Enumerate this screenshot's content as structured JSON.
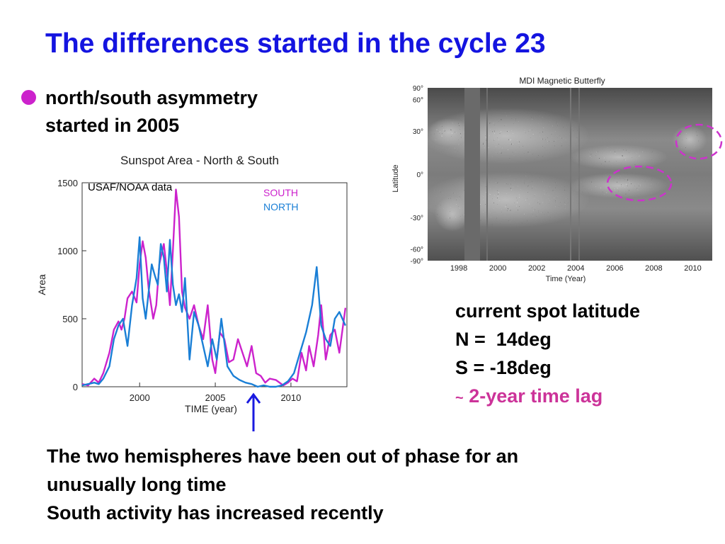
{
  "title": "The differences started in the cycle 23",
  "bullet": {
    "line1": "north/south asymmetry",
    "line2": "started in 2005"
  },
  "right_note": {
    "line1": "current spot latitude",
    "line2": "N =  14deg",
    "line3": "S = -18deg",
    "line4_symbol": "~",
    "line4_text": "2-year time lag"
  },
  "bottom_note": {
    "line1": "The two hemispheres have been out of phase for an",
    "line2": "unusually long time",
    "line3": "South activity has increased recently"
  },
  "colors": {
    "title": "#1414e0",
    "south": "#cc22cc",
    "north": "#1a7fd6",
    "lag": "#cc3399",
    "arrow": "#1a1ae0"
  },
  "chart_data": [
    {
      "type": "line",
      "title": "Sunspot Area - North & South",
      "xlabel": "TIME (year)",
      "ylabel": "Area",
      "annotation": "USAF/NOAA data",
      "xlim": [
        1996.2,
        2013.7
      ],
      "ylim": [
        0,
        1500
      ],
      "xticks": [
        2000,
        2005,
        2010
      ],
      "yticks": [
        0,
        500,
        1000,
        1500
      ],
      "series": [
        {
          "name": "SOUTH",
          "x": [
            1996.2,
            1996.6,
            1997.0,
            1997.3,
            1997.6,
            1998.0,
            1998.3,
            1998.6,
            1998.8,
            1999.0,
            1999.2,
            1999.5,
            1999.8,
            2000.0,
            2000.2,
            2000.4,
            2000.6,
            2000.9,
            2001.1,
            2001.3,
            2001.6,
            2001.8,
            2002.0,
            2002.2,
            2002.4,
            2002.6,
            2002.8,
            2003.0,
            2003.3,
            2003.6,
            2003.9,
            2004.2,
            2004.5,
            2004.8,
            2005.0,
            2005.3,
            2005.6,
            2005.9,
            2006.2,
            2006.5,
            2006.8,
            2007.1,
            2007.4,
            2007.7,
            2008.0,
            2008.3,
            2008.6,
            2009.0,
            2009.5,
            2009.8,
            2010.1,
            2010.4,
            2010.7,
            2011.0,
            2011.2,
            2011.5,
            2011.8,
            2012.0,
            2012.3,
            2012.6,
            2012.9,
            2013.2,
            2013.6
          ],
          "values": [
            20,
            10,
            60,
            30,
            100,
            250,
            420,
            480,
            420,
            500,
            650,
            700,
            620,
            900,
            1070,
            950,
            720,
            500,
            600,
            900,
            1050,
            850,
            600,
            1000,
            1450,
            1250,
            700,
            580,
            500,
            600,
            450,
            350,
            600,
            200,
            100,
            400,
            350,
            180,
            200,
            350,
            250,
            150,
            300,
            100,
            80,
            30,
            60,
            50,
            10,
            30,
            60,
            40,
            250,
            120,
            300,
            150,
            380,
            600,
            200,
            380,
            420,
            250,
            580
          ]
        },
        {
          "name": "NORTH",
          "x": [
            1996.2,
            1996.6,
            1997.0,
            1997.3,
            1997.6,
            1998.0,
            1998.3,
            1998.6,
            1998.9,
            1999.2,
            1999.5,
            1999.8,
            2000.0,
            2000.2,
            2000.4,
            2000.6,
            2000.8,
            2001.0,
            2001.2,
            2001.4,
            2001.6,
            2001.8,
            2002.0,
            2002.2,
            2002.4,
            2002.6,
            2002.8,
            2003.0,
            2003.3,
            2003.6,
            2003.9,
            2004.2,
            2004.5,
            2004.8,
            2005.1,
            2005.4,
            2005.8,
            2006.2,
            2006.6,
            2007.0,
            2007.4,
            2007.8,
            2008.2,
            2008.6,
            2009.0,
            2009.4,
            2009.8,
            2010.2,
            2010.6,
            2011.0,
            2011.4,
            2011.7,
            2012.0,
            2012.3,
            2012.6,
            2012.9,
            2013.2,
            2013.6
          ],
          "values": [
            10,
            20,
            30,
            20,
            60,
            150,
            350,
            450,
            500,
            300,
            600,
            800,
            1100,
            650,
            500,
            700,
            900,
            820,
            750,
            1050,
            950,
            700,
            1080,
            750,
            600,
            680,
            550,
            800,
            200,
            550,
            450,
            300,
            150,
            350,
            200,
            500,
            150,
            80,
            50,
            30,
            20,
            0,
            10,
            0,
            0,
            10,
            40,
            100,
            250,
            400,
            600,
            880,
            450,
            350,
            300,
            500,
            550,
            450
          ]
        }
      ]
    },
    {
      "type": "heatmap",
      "title": "MDI Magnetic Butterfly",
      "xlabel": "Time (Year)",
      "ylabel": "Latitude",
      "xticks": [
        1998,
        2000,
        2002,
        2004,
        2006,
        2008,
        2010
      ],
      "ytick_labels": [
        "90°",
        "60°",
        "30°",
        "0°",
        "-30°",
        "-60°",
        "-90°"
      ],
      "xlim": [
        1996.4,
        2011.0
      ]
    }
  ]
}
